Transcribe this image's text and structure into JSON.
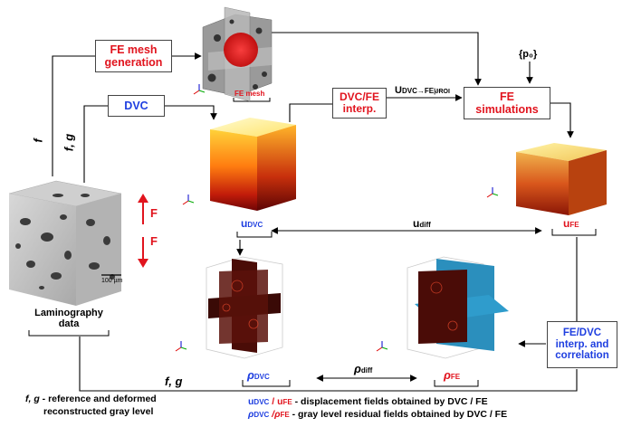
{
  "boxes": {
    "fe_mesh_generation": "FE mesh\ngeneration",
    "dvc": "DVC",
    "dvc_fe_interp": "DVC/FE\ninterp.",
    "fe_simulations": "FE\nsimulations",
    "fe_dvc_interp": "FE/DVC\ninterp. and\ncorrelation"
  },
  "labels": {
    "f_left": "f",
    "f_g_left": "f, g",
    "fe_mesh": "FE mesh",
    "p0": "{p₀}",
    "u_dvc_fe_main": "U",
    "u_dvc_fe_sub": "DVC→FE",
    "u_dvc_fe_roi": "|∂ROI",
    "u_dvc_main": "u",
    "u_dvc_sub": "DVC",
    "u_diff_main": "u",
    "u_diff_sub": "diff",
    "u_fe_main": "u",
    "u_fe_sub": "FE",
    "force_top": "F",
    "force_bottom": "F",
    "scale": "100 µm",
    "lamino_title": "Laminography\ndata",
    "rho_dvc_main": "ρ",
    "rho_dvc_sub": "DVC",
    "rho_diff_main": "ρ",
    "rho_diff_sub": "diff",
    "rho_fe_main": "ρ",
    "rho_fe_sub": "FE",
    "f_g_bottom": "f, g"
  },
  "legend": {
    "fg_vars": "f, g",
    "fg_text": " - reference and deformed",
    "fg_text2": "reconstructed gray level",
    "u_dvc": "u",
    "u_dvc_sub": "DVC",
    "u_sep": " / u",
    "u_fe_sub": "FE",
    "u_text": "  - displacement fields obtained by DVC / FE",
    "rho_dvc": "ρ",
    "rho_dvc_sub": "DVC",
    "rho_sep": " /ρ",
    "rho_fe_sub": "FE",
    "rho_text": " - gray level residual fields obtained by DVC / FE"
  },
  "colors": {
    "red_text": "#e1141e",
    "blue_text": "#1f3fe0",
    "dark_red_text": "#8b0000",
    "residual_dark": "#3a0a06",
    "residual_blue": "#2b8fbd"
  }
}
